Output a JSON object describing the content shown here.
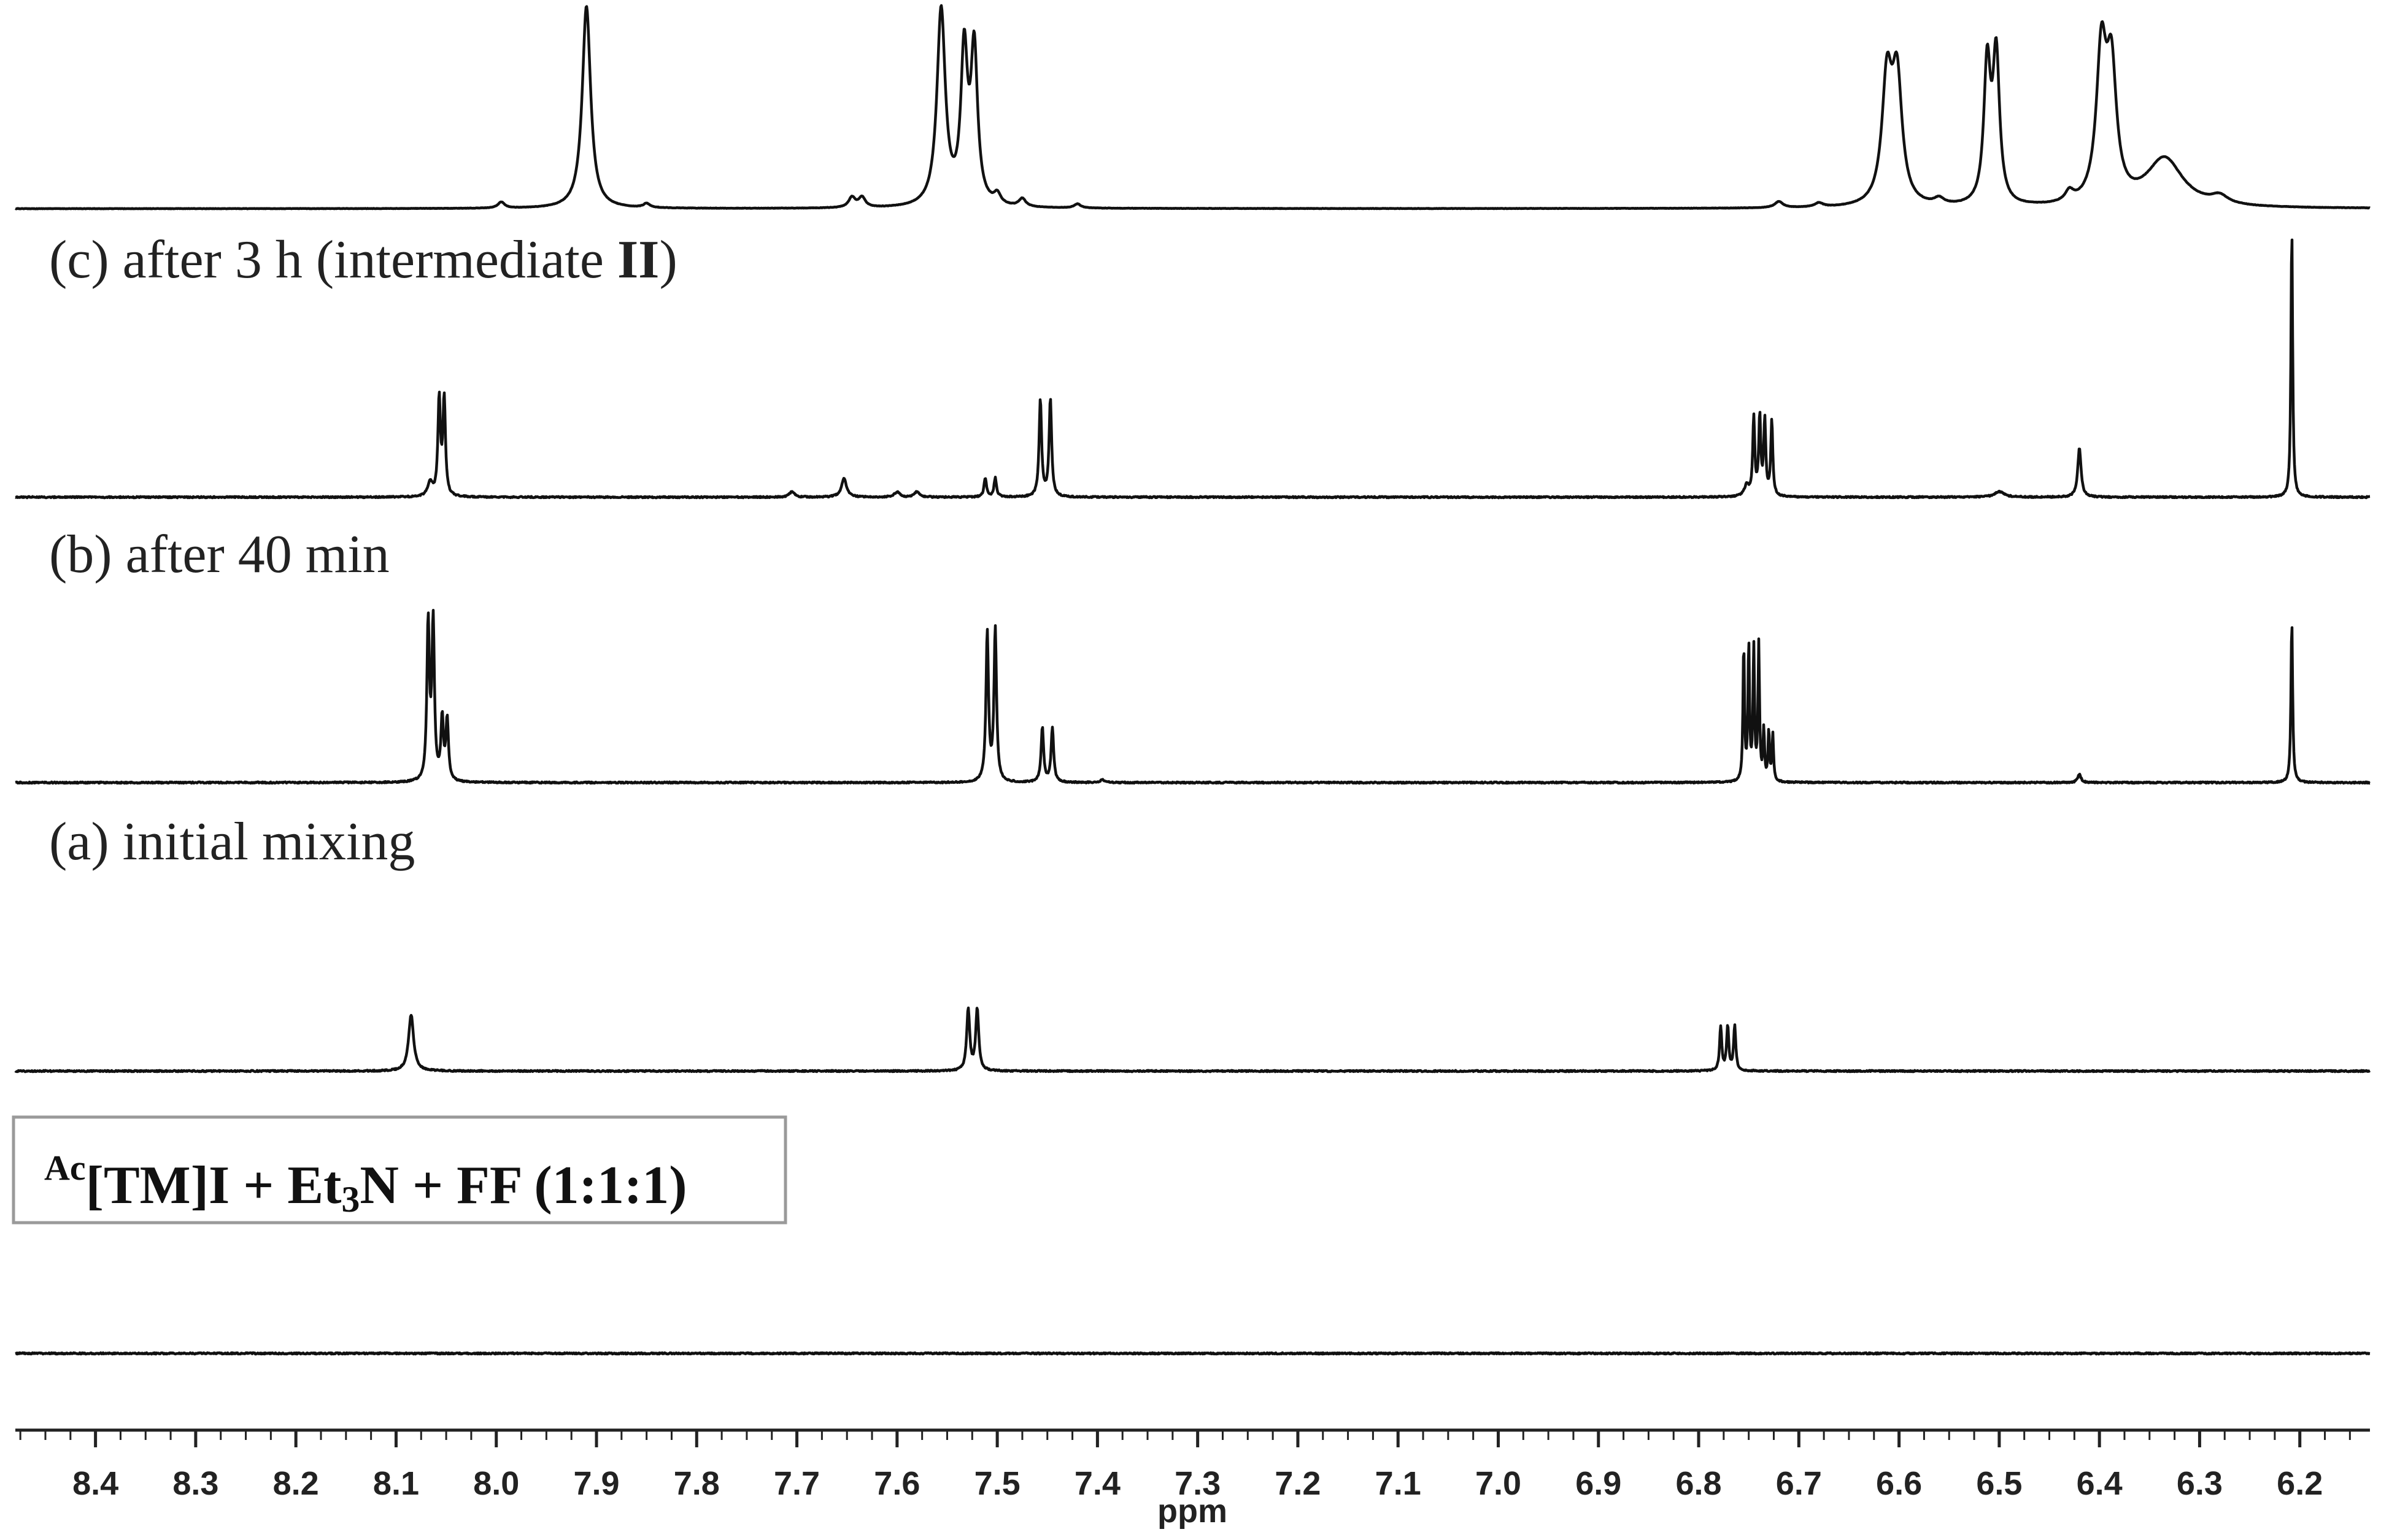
{
  "chart_data": {
    "type": "line",
    "xlabel": "ppm",
    "x_reversed": true,
    "xlim": [
      8.48,
      6.13
    ],
    "ticks": [
      "8.4",
      "8.3",
      "8.2",
      "8.1",
      "8.0",
      "7.9",
      "7.8",
      "7.7",
      "7.6",
      "7.5",
      "7.4",
      "7.3",
      "7.2",
      "7.1",
      "7.0",
      "6.9",
      "6.8",
      "6.7",
      "6.6",
      "6.5",
      "6.4",
      "6.3",
      "6.2"
    ],
    "tick_values": [
      8.4,
      8.3,
      8.2,
      8.1,
      8.0,
      7.9,
      7.8,
      7.7,
      7.6,
      7.5,
      7.4,
      7.3,
      7.2,
      7.1,
      7.0,
      6.9,
      6.8,
      6.7,
      6.6,
      6.5,
      6.4,
      6.3,
      6.2
    ],
    "colors": {
      "trace": "#111111",
      "box_border": "#9a9a9a"
    },
    "series": [
      {
        "label": "(c) after 3 h (intermediate II)",
        "label_main": "(c) after 3 h (intermediate ",
        "label_bold": "II",
        "label_tail": ")",
        "peaks": [
          {
            "x": 7.91,
            "h": 1.0,
            "w": 0.005
          },
          {
            "x": 7.995,
            "h": 0.03,
            "w": 0.004
          },
          {
            "x": 7.85,
            "h": 0.02,
            "w": 0.004
          },
          {
            "x": 7.645,
            "h": 0.05,
            "w": 0.004
          },
          {
            "x": 7.635,
            "h": 0.05,
            "w": 0.004
          },
          {
            "x": 7.556,
            "h": 0.97,
            "w": 0.005
          },
          {
            "x": 7.533,
            "h": 0.74,
            "w": 0.004
          },
          {
            "x": 7.523,
            "h": 0.75,
            "w": 0.004
          },
          {
            "x": 7.5,
            "h": 0.05,
            "w": 0.004
          },
          {
            "x": 7.475,
            "h": 0.04,
            "w": 0.004
          },
          {
            "x": 7.42,
            "h": 0.02,
            "w": 0.004
          },
          {
            "x": 6.72,
            "h": 0.03,
            "w": 0.005
          },
          {
            "x": 6.68,
            "h": 0.02,
            "w": 0.005
          },
          {
            "x": 6.612,
            "h": 0.6,
            "w": 0.006
          },
          {
            "x": 6.602,
            "h": 0.6,
            "w": 0.006
          },
          {
            "x": 6.56,
            "h": 0.03,
            "w": 0.006
          },
          {
            "x": 6.512,
            "h": 0.68,
            "w": 0.004
          },
          {
            "x": 6.503,
            "h": 0.72,
            "w": 0.004
          },
          {
            "x": 6.43,
            "h": 0.05,
            "w": 0.005
          },
          {
            "x": 6.398,
            "h": 0.72,
            "w": 0.006
          },
          {
            "x": 6.388,
            "h": 0.62,
            "w": 0.006
          },
          {
            "x": 6.335,
            "h": 0.24,
            "w": 0.022
          },
          {
            "x": 6.28,
            "h": 0.04,
            "w": 0.01
          }
        ]
      },
      {
        "label": "(b) after 40 min",
        "peaks": [
          {
            "x": 8.066,
            "h": 0.05,
            "w": 0.003
          },
          {
            "x": 8.057,
            "h": 0.36,
            "w": 0.0015
          },
          {
            "x": 8.052,
            "h": 0.36,
            "w": 0.0015
          },
          {
            "x": 7.705,
            "h": 0.02,
            "w": 0.003
          },
          {
            "x": 7.653,
            "h": 0.07,
            "w": 0.003
          },
          {
            "x": 7.6,
            "h": 0.02,
            "w": 0.003
          },
          {
            "x": 7.58,
            "h": 0.02,
            "w": 0.003
          },
          {
            "x": 7.512,
            "h": 0.07,
            "w": 0.0015
          },
          {
            "x": 7.502,
            "h": 0.07,
            "w": 0.0015
          },
          {
            "x": 7.457,
            "h": 0.36,
            "w": 0.0015
          },
          {
            "x": 7.447,
            "h": 0.36,
            "w": 0.0015
          },
          {
            "x": 6.752,
            "h": 0.04,
            "w": 0.003
          },
          {
            "x": 6.745,
            "h": 0.29,
            "w": 0.0012
          },
          {
            "x": 6.739,
            "h": 0.29,
            "w": 0.0012
          },
          {
            "x": 6.734,
            "h": 0.28,
            "w": 0.0012
          },
          {
            "x": 6.727,
            "h": 0.28,
            "w": 0.0012
          },
          {
            "x": 6.5,
            "h": 0.02,
            "w": 0.006
          },
          {
            "x": 6.42,
            "h": 0.18,
            "w": 0.002
          },
          {
            "x": 6.208,
            "h": 1.0,
            "w": 0.001
          }
        ]
      },
      {
        "label": "(a) initial mixing",
        "peaks": [
          {
            "x": 8.068,
            "h": 0.95,
            "w": 0.0015
          },
          {
            "x": 8.063,
            "h": 0.95,
            "w": 0.0015
          },
          {
            "x": 8.054,
            "h": 0.37,
            "w": 0.0015
          },
          {
            "x": 8.049,
            "h": 0.37,
            "w": 0.0015
          },
          {
            "x": 7.51,
            "h": 0.9,
            "w": 0.0015
          },
          {
            "x": 7.502,
            "h": 0.92,
            "w": 0.0015
          },
          {
            "x": 7.455,
            "h": 0.33,
            "w": 0.0015
          },
          {
            "x": 7.445,
            "h": 0.33,
            "w": 0.0015
          },
          {
            "x": 7.395,
            "h": 0.02,
            "w": 0.002
          },
          {
            "x": 6.755,
            "h": 0.82,
            "w": 0.0009
          },
          {
            "x": 6.75,
            "h": 0.82,
            "w": 0.0009
          },
          {
            "x": 6.745,
            "h": 0.8,
            "w": 0.0009
          },
          {
            "x": 6.74,
            "h": 0.82,
            "w": 0.0009
          },
          {
            "x": 6.735,
            "h": 0.3,
            "w": 0.0009
          },
          {
            "x": 6.73,
            "h": 0.3,
            "w": 0.0009
          },
          {
            "x": 6.726,
            "h": 0.28,
            "w": 0.0009
          },
          {
            "x": 6.42,
            "h": 0.05,
            "w": 0.002
          },
          {
            "x": 6.208,
            "h": 0.98,
            "w": 0.001
          }
        ]
      },
      {
        "label": "",
        "peaks": [
          {
            "x": 8.085,
            "h": 0.46,
            "w": 0.003
          },
          {
            "x": 7.529,
            "h": 0.5,
            "w": 0.0018
          },
          {
            "x": 7.52,
            "h": 0.5,
            "w": 0.0018
          },
          {
            "x": 6.778,
            "h": 0.36,
            "w": 0.0013
          },
          {
            "x": 6.771,
            "h": 0.36,
            "w": 0.0013
          },
          {
            "x": 6.764,
            "h": 0.36,
            "w": 0.0013
          }
        ]
      },
      {
        "label": "",
        "peaks": []
      }
    ]
  },
  "legend_box": {
    "superscript": "Ac",
    "text_main": "[TM]I + Et",
    "subscript": "3",
    "text_tail": "N + FF (1:1:1)"
  }
}
